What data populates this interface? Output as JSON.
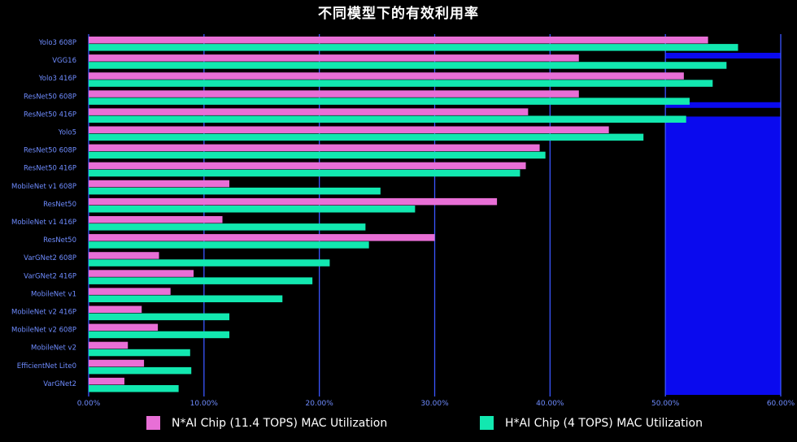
{
  "chart_data": {
    "type": "bar",
    "orientation": "horizontal",
    "title": "不同模型下的有效利用率",
    "categories": [
      "Yolo3 608P",
      "VGG16",
      "Yolo3 416P",
      "ResNet50 608P",
      "ResNet50 416P",
      "Yolo5",
      "ResNet50 608P",
      "ResNet50 416P",
      "MobileNet v1 608P",
      "ResNet50",
      "MobileNet v1 416P",
      "ResNet50",
      "VarGNet2 608P",
      "VarGNet2 416P",
      "MobileNet v1",
      "MobileNet v2 416P",
      "MobileNet v2 608P",
      "MobileNet v2",
      "EfficientNet Lite0",
      "VarGNet2"
    ],
    "series": [
      {
        "name": "N*AI Chip (11.4 TOPS) MAC Utilization",
        "color": "#e86fd6",
        "values": [
          53.7,
          42.5,
          51.6,
          42.5,
          38.1,
          45.1,
          39.1,
          37.9,
          12.2,
          35.4,
          11.6,
          30.0,
          6.1,
          9.1,
          7.1,
          4.6,
          6.0,
          3.4,
          4.8,
          3.1
        ]
      },
      {
        "name": "H*AI Chip (4 TOPS) MAC Utilization",
        "color": "#12e8b0",
        "values": [
          56.3,
          55.3,
          54.1,
          52.1,
          51.8,
          48.1,
          39.6,
          37.4,
          25.3,
          28.3,
          24.0,
          24.3,
          20.9,
          19.4,
          16.8,
          12.2,
          12.2,
          8.8,
          8.9,
          7.8
        ]
      }
    ],
    "xlim": [
      0,
      60
    ],
    "xticks": [
      "0.00%",
      "10.00%",
      "20.00%",
      "30.00%",
      "40.00%",
      "50.00%",
      "60.00%"
    ],
    "grid": true,
    "legend_position": "bottom"
  },
  "colors": {
    "background": "#000000",
    "grid": "#3a55ff",
    "axis_text": "#6f8cff",
    "highlight": "#0a0aee"
  }
}
